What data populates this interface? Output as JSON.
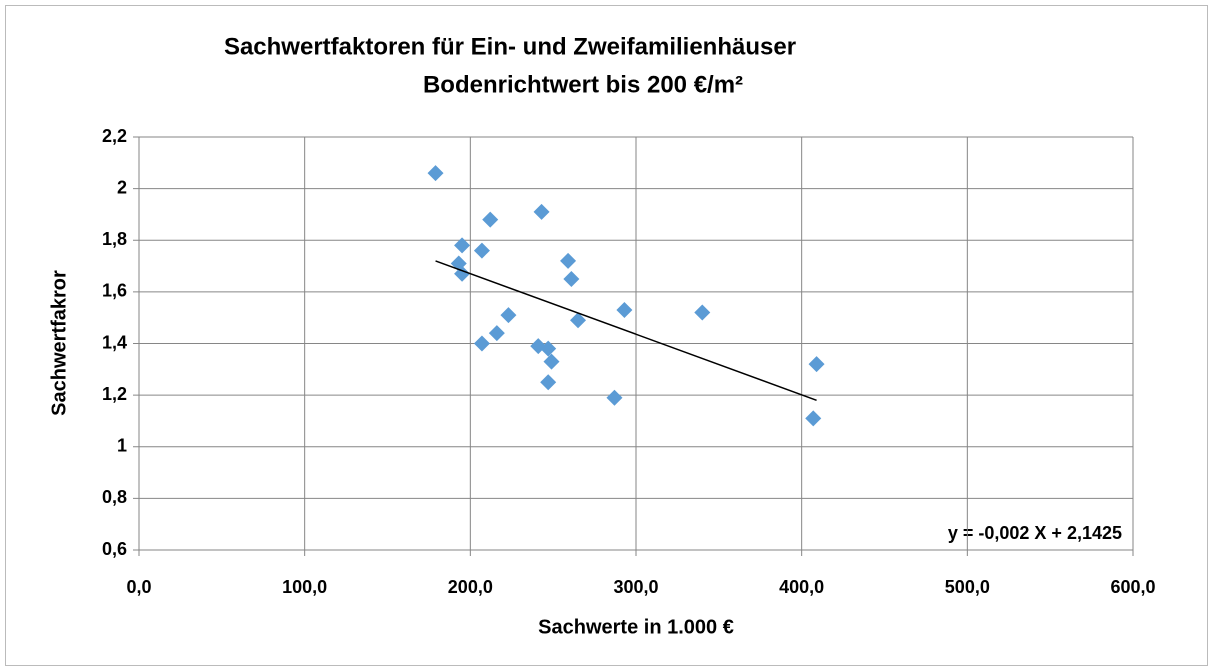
{
  "chart_data": {
    "type": "scatter",
    "title": "Sachwertfaktoren für Ein- und Zweifamilienhäuser",
    "subtitle": "Bodenrichtwert bis 200 €/m²",
    "x_label": "Sachwerte in 1.000 €",
    "y_label": "Sachwertfakror",
    "annotation": "y = -0,002 X + 2,1425",
    "color": "#5b9bd5",
    "grid": true,
    "x": [
      179,
      195,
      193,
      195,
      207,
      212,
      243,
      259,
      261,
      293,
      340,
      223,
      265,
      216,
      207,
      241,
      247,
      249,
      247,
      287,
      409,
      407
    ],
    "values": [
      2.06,
      1.78,
      1.71,
      1.67,
      1.76,
      1.88,
      1.91,
      1.72,
      1.65,
      1.53,
      1.52,
      1.51,
      1.49,
      1.44,
      1.4,
      1.39,
      1.38,
      1.33,
      1.25,
      1.19,
      1.32,
      1.11
    ],
    "trendline": {
      "x": [
        179,
        409
      ],
      "values": [
        1.72,
        1.18
      ]
    },
    "xlim": [
      0,
      600
    ],
    "ylim": [
      0.6,
      2.2
    ],
    "xticks": [
      {
        "value": 0,
        "label": "0,0"
      },
      {
        "value": 100,
        "label": "100,0"
      },
      {
        "value": 200,
        "label": "200,0"
      },
      {
        "value": 300,
        "label": "300,0"
      },
      {
        "value": 400,
        "label": "400,0"
      },
      {
        "value": 500,
        "label": "500,0"
      },
      {
        "value": 600,
        "label": "600,0"
      }
    ],
    "yticks": [
      {
        "value": 0.6,
        "label": "0,6"
      },
      {
        "value": 0.8,
        "label": "0,8"
      },
      1,
      {
        "value": 1.2,
        "label": "1,2"
      },
      {
        "value": 1.4,
        "label": "1,4"
      },
      {
        "value": 1.6,
        "label": "1,6"
      },
      {
        "value": 1.8,
        "label": "1,8"
      },
      2,
      {
        "value": 2.2,
        "label": "2,2"
      }
    ]
  }
}
